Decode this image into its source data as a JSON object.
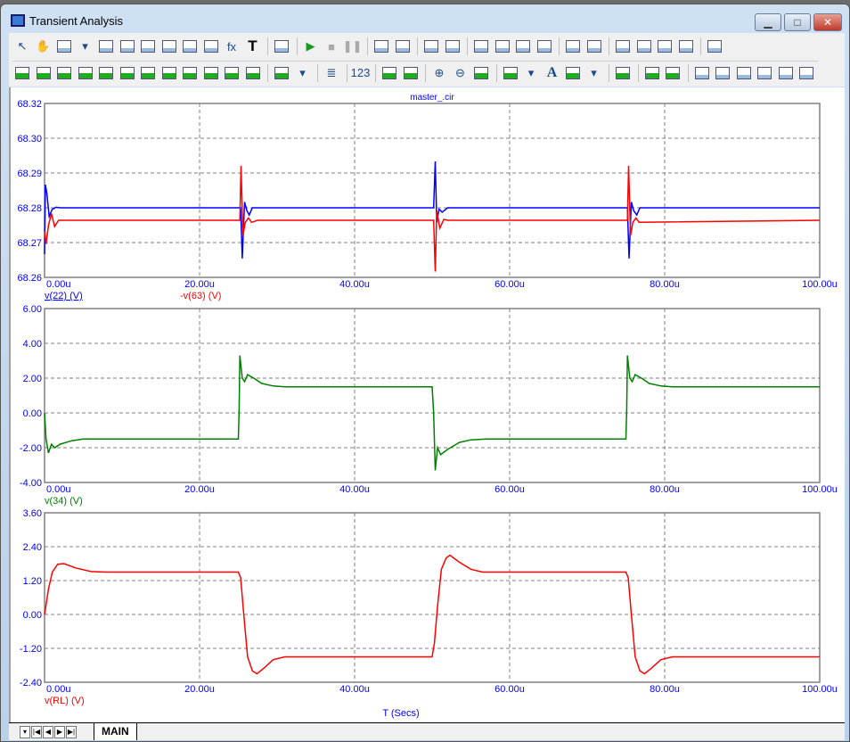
{
  "window": {
    "title": "Transient Analysis",
    "controls": [
      "▁",
      "□",
      "✕"
    ]
  },
  "toolbar": {
    "row1": [
      "select-icon",
      "pan-hand-icon",
      "shapes-icon",
      "dropdown-arrow-icon",
      "image-icon",
      "scope-zoom-icon",
      "data-points-icon",
      "scale-horizontal-icon",
      "scale-vertical-icon",
      "cursor-mode-icon",
      "function-fx-icon",
      "text-T-icon",
      "|",
      "properties-icon",
      "|",
      "run-icon",
      "stop-icon",
      "pause-icon",
      "|",
      "trace-tag-icon",
      "point-tag-icon",
      "|",
      "frame-icon",
      "grid-points-icon",
      "|",
      "vertical-grid-icon",
      "horizontal-grid-icon",
      "minor-grid-icon",
      "axis-grid-icon",
      "|",
      "horizontal-tag-icon",
      "crosshair-icon",
      "|",
      "zoom-x-icon",
      "zoom-y-icon",
      "zoom-fx-icon",
      "zoom-list-icon",
      "|",
      "table-edit-icon"
    ],
    "row2": [
      "cursor-peak-icon",
      "cursor-next-icon",
      "peak-icon",
      "valley-icon",
      "high-icon",
      "low-icon",
      "inflection-icon",
      "slope-icon",
      "global-high-icon",
      "global-low-icon",
      "top-icon",
      "bottom-icon",
      "|",
      "clipboard-icon",
      "dropdown-arrow-icon",
      "|",
      "list-icon",
      "|",
      "numeric-icon",
      "|",
      "same-x-icon",
      "same-y-icon",
      "|",
      "zoom-in-icon",
      "zoom-out-icon",
      "zoom-100-icon",
      "|",
      "grid-color-icon",
      "dropdown-arrow-icon",
      "font-A-icon",
      "font-color-icon",
      "dropdown-arrow-icon",
      "|",
      "send-back-icon",
      "|",
      "overlap-icon",
      "overlap-2-icon",
      "|",
      "align-left-icon",
      "align-center-icon",
      "align-right-icon",
      "align-top-icon",
      "align-middle-icon",
      "align-bottom-icon"
    ]
  },
  "colors": {
    "axis_text": "#0000ff",
    "grid": "#808080",
    "blue": "#0000ff",
    "red": "#ff0000",
    "green": "#008000"
  },
  "chart_data": [
    {
      "type": "line",
      "title": "master_.cir",
      "xlim": [
        0,
        100
      ],
      "ylim": [
        68.26,
        68.32
      ],
      "yticks": [
        "68.32",
        "68.30",
        "68.29",
        "68.28",
        "68.27",
        "68.26"
      ],
      "xticks": [
        "0.00u",
        "20.00u",
        "40.00u",
        "60.00u",
        "80.00u",
        "100.00u"
      ],
      "grid": true,
      "series": [
        {
          "name": "v(22) (V)",
          "color": "#0000ff",
          "points": [
            [
              0,
              68.268
            ],
            [
              0.1,
              68.292
            ],
            [
              0.3,
              68.289
            ],
            [
              0.6,
              68.281
            ],
            [
              1,
              68.2835
            ],
            [
              1.5,
              68.2842
            ],
            [
              2,
              68.284
            ],
            [
              25,
              68.284
            ],
            [
              25.3,
              68.284
            ],
            [
              25.5,
              68.2665
            ],
            [
              25.8,
              68.286
            ],
            [
              26.1,
              68.283
            ],
            [
              26.4,
              68.2815
            ],
            [
              26.8,
              68.284
            ],
            [
              28,
              68.284
            ],
            [
              50,
              68.284
            ],
            [
              50.2,
              68.284
            ],
            [
              50.4,
              68.3
            ],
            [
              50.6,
              68.279
            ],
            [
              50.9,
              68.2835
            ],
            [
              51.3,
              68.2825
            ],
            [
              52,
              68.284
            ],
            [
              75,
              68.284
            ],
            [
              75.2,
              68.284
            ],
            [
              75.4,
              68.2665
            ],
            [
              75.7,
              68.286
            ],
            [
              76,
              68.283
            ],
            [
              76.4,
              68.2815
            ],
            [
              76.8,
              68.284
            ],
            [
              100,
              68.284
            ]
          ]
        },
        {
          "name": "-v(63) (V)",
          "color": "#ff0000",
          "points": [
            [
              0,
              68.276
            ],
            [
              0.2,
              68.2715
            ],
            [
              0.5,
              68.278
            ],
            [
              0.9,
              68.282
            ],
            [
              1.3,
              68.2775
            ],
            [
              1.8,
              68.2797
            ],
            [
              25,
              68.2797
            ],
            [
              25.2,
              68.2797
            ],
            [
              25.35,
              68.2985
            ],
            [
              25.6,
              68.2745
            ],
            [
              25.9,
              68.279
            ],
            [
              26.3,
              68.2805
            ],
            [
              26.7,
              68.279
            ],
            [
              27.5,
              68.2797
            ],
            [
              50,
              68.2797
            ],
            [
              50.2,
              68.2797
            ],
            [
              50.4,
              68.262
            ],
            [
              50.6,
              68.283
            ],
            [
              51,
              68.277
            ],
            [
              51.5,
              68.28
            ],
            [
              52,
              68.2797
            ],
            [
              75,
              68.2797
            ],
            [
              75.2,
              68.2797
            ],
            [
              75.35,
              68.2985
            ],
            [
              75.6,
              68.2745
            ],
            [
              75.9,
              68.279
            ],
            [
              76.3,
              68.2805
            ],
            [
              76.7,
              68.279
            ],
            [
              100,
              68.2797
            ]
          ]
        }
      ]
    },
    {
      "type": "line",
      "xlim": [
        0,
        100
      ],
      "ylim": [
        -4,
        6
      ],
      "yticks": [
        "6.00",
        "4.00",
        "2.00",
        "0.00",
        "-2.00",
        "-4.00"
      ],
      "xticks": [
        "0.00u",
        "20.00u",
        "40.00u",
        "60.00u",
        "80.00u",
        "100.00u"
      ],
      "grid": true,
      "series": [
        {
          "name": "v(34) (V)",
          "color": "#008000",
          "points": [
            [
              0,
              0
            ],
            [
              0.2,
              -1.5
            ],
            [
              0.5,
              -2.3
            ],
            [
              0.9,
              -1.8
            ],
            [
              1.3,
              -2.0
            ],
            [
              2,
              -1.8
            ],
            [
              3.5,
              -1.6
            ],
            [
              5,
              -1.5
            ],
            [
              25,
              -1.5
            ],
            [
              25.1,
              0.2
            ],
            [
              25.2,
              3.3
            ],
            [
              25.5,
              2.0
            ],
            [
              25.8,
              1.8
            ],
            [
              26.2,
              2.2
            ],
            [
              27,
              2.0
            ],
            [
              28,
              1.7
            ],
            [
              29.5,
              1.55
            ],
            [
              31,
              1.5
            ],
            [
              50,
              1.5
            ],
            [
              50.2,
              0
            ],
            [
              50.4,
              -3.3
            ],
            [
              50.7,
              -2.0
            ],
            [
              51.1,
              -2.4
            ],
            [
              52,
              -2.1
            ],
            [
              53.5,
              -1.7
            ],
            [
              55,
              -1.55
            ],
            [
              57,
              -1.5
            ],
            [
              75,
              -1.5
            ],
            [
              75.1,
              0.2
            ],
            [
              75.2,
              3.3
            ],
            [
              75.5,
              2.0
            ],
            [
              75.8,
              1.8
            ],
            [
              76.2,
              2.2
            ],
            [
              77,
              2.0
            ],
            [
              78,
              1.7
            ],
            [
              79.5,
              1.55
            ],
            [
              81,
              1.5
            ],
            [
              100,
              1.5
            ]
          ]
        }
      ]
    },
    {
      "type": "line",
      "xlim": [
        0,
        100
      ],
      "ylim": [
        -2.4,
        3.6
      ],
      "yticks": [
        "3.60",
        "2.40",
        "1.20",
        "0.00",
        "-1.20",
        "-2.40"
      ],
      "xticks": [
        "0.00u",
        "20.00u",
        "40.00u",
        "60.00u",
        "80.00u",
        "100.00u"
      ],
      "grid": true,
      "xlabel": "T (Secs)",
      "series": [
        {
          "name": "v(RL) (V)",
          "color": "#ff0000",
          "points": [
            [
              0,
              0
            ],
            [
              0.5,
              0.9
            ],
            [
              1,
              1.5
            ],
            [
              1.7,
              1.78
            ],
            [
              2.5,
              1.8
            ],
            [
              4,
              1.65
            ],
            [
              6,
              1.52
            ],
            [
              8,
              1.5
            ],
            [
              25,
              1.5
            ],
            [
              25.3,
              1.3
            ],
            [
              25.7,
              0
            ],
            [
              26.2,
              -1.5
            ],
            [
              26.8,
              -2.0
            ],
            [
              27.4,
              -2.1
            ],
            [
              28.3,
              -1.9
            ],
            [
              29.5,
              -1.6
            ],
            [
              31,
              -1.5
            ],
            [
              50,
              -1.5
            ],
            [
              50.3,
              -1.0
            ],
            [
              50.7,
              0.3
            ],
            [
              51.2,
              1.6
            ],
            [
              51.8,
              2.0
            ],
            [
              52.3,
              2.1
            ],
            [
              53.5,
              1.85
            ],
            [
              55,
              1.6
            ],
            [
              56.5,
              1.5
            ],
            [
              75,
              1.5
            ],
            [
              75.3,
              1.3
            ],
            [
              75.7,
              0
            ],
            [
              76.2,
              -1.5
            ],
            [
              76.8,
              -2.0
            ],
            [
              77.4,
              -2.1
            ],
            [
              78.3,
              -1.9
            ],
            [
              79.5,
              -1.6
            ],
            [
              81,
              -1.5
            ],
            [
              100,
              -1.5
            ]
          ]
        }
      ]
    }
  ],
  "tabs": {
    "nav": [
      "▾",
      "|◀",
      "◀",
      "▶",
      "▶|"
    ],
    "active": "MAIN"
  }
}
